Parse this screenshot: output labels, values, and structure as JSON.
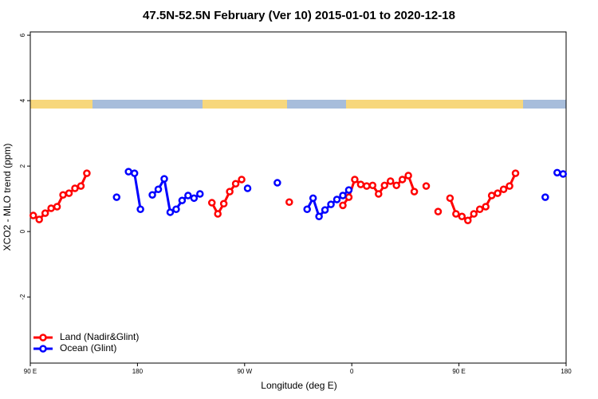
{
  "chart_data": {
    "type": "line",
    "title": "47.5N-52.5N February (Ver 10)   2015-01-01 to 2020-12-18",
    "x_label": "Longitude (deg E)",
    "y_label": "XCO2 - MLO trend (ppm)",
    "x": [
      92.5,
      97.5,
      102.5,
      107.5,
      112.5,
      117.5,
      122.5,
      127.5,
      132.5,
      137.5,
      142.5,
      147.5,
      152.5,
      157.5,
      162.5,
      167.5,
      172.5,
      177.5,
      182.5,
      187.5,
      192.5,
      197.5,
      202.5,
      207.5,
      212.5,
      217.5,
      222.5,
      227.5,
      232.5,
      237.5,
      242.5,
      247.5,
      252.5,
      257.5,
      262.5,
      267.5,
      272.5,
      277.5,
      282.5,
      287.5,
      292.5,
      297.5,
      302.5,
      307.5,
      312.5,
      317.5,
      322.5,
      327.5,
      332.5,
      337.5,
      342.5,
      347.5,
      352.5,
      357.5,
      362.5,
      367.5,
      372.5,
      377.5,
      382.5,
      387.5,
      392.5,
      397.5,
      402.5,
      407.5,
      412.5,
      417.5,
      422.5,
      427.5,
      432.5,
      437.5,
      442.5,
      447.5,
      452.5,
      457.5,
      462.5,
      467.5,
      472.5,
      477.5,
      482.5,
      487.5,
      492.5,
      497.5,
      502.5,
      507.5,
      512.5,
      517.5,
      522.5,
      527.5,
      532.5,
      537.5
    ],
    "series": [
      {
        "name": "Land (Nadir&Glint)",
        "color": "#ff0000",
        "values": [
          0.49,
          0.37,
          0.56,
          0.71,
          0.76,
          1.12,
          1.17,
          1.32,
          1.39,
          1.78,
          null,
          null,
          null,
          null,
          null,
          null,
          null,
          null,
          null,
          null,
          null,
          null,
          null,
          null,
          null,
          null,
          null,
          null,
          null,
          null,
          0.88,
          0.54,
          0.85,
          1.22,
          1.46,
          1.59,
          null,
          null,
          null,
          null,
          null,
          null,
          null,
          0.9,
          null,
          null,
          null,
          null,
          null,
          null,
          null,
          null,
          0.8,
          1.05,
          1.59,
          1.44,
          1.39,
          1.41,
          1.15,
          1.41,
          1.54,
          1.41,
          1.59,
          1.71,
          1.22,
          null,
          1.39,
          null,
          0.61,
          null,
          1.02,
          0.54,
          0.46,
          0.34,
          0.54,
          0.68,
          0.76,
          1.1,
          1.17,
          1.29,
          1.39,
          1.78,
          null,
          null,
          null,
          null,
          null,
          null,
          null,
          null
        ]
      },
      {
        "name": "Ocean (Glint)",
        "color": "#0000ff",
        "values": [
          null,
          null,
          null,
          null,
          null,
          null,
          null,
          null,
          null,
          null,
          null,
          null,
          null,
          null,
          1.05,
          null,
          1.83,
          1.78,
          0.68,
          null,
          1.12,
          1.29,
          1.61,
          0.59,
          0.68,
          0.95,
          1.1,
          1.02,
          1.15,
          null,
          null,
          null,
          null,
          null,
          null,
          null,
          1.32,
          null,
          null,
          null,
          null,
          1.49,
          null,
          null,
          null,
          null,
          0.68,
          1.02,
          0.46,
          0.66,
          0.83,
          0.98,
          1.1,
          1.27,
          null,
          null,
          null,
          null,
          null,
          null,
          null,
          null,
          null,
          null,
          null,
          null,
          null,
          null,
          null,
          null,
          null,
          null,
          null,
          null,
          null,
          null,
          null,
          null,
          null,
          null,
          null,
          null,
          null,
          null,
          null,
          null,
          1.05,
          null,
          1.8,
          1.76
        ]
      }
    ],
    "xlim": [
      90,
      540
    ],
    "xticks": [
      {
        "value": 90,
        "label": "90 E"
      },
      180,
      {
        "value": 270,
        "label": "90 W"
      },
      {
        "value": 360,
        "label": "0"
      },
      {
        "value": 450,
        "label": "90 E"
      },
      {
        "value": 540,
        "label": "180"
      }
    ],
    "ylim": [
      -4.02,
      6.1
    ],
    "yticks": [
      -2,
      0,
      2,
      4,
      6
    ],
    "legend": "bottom-left"
  }
}
